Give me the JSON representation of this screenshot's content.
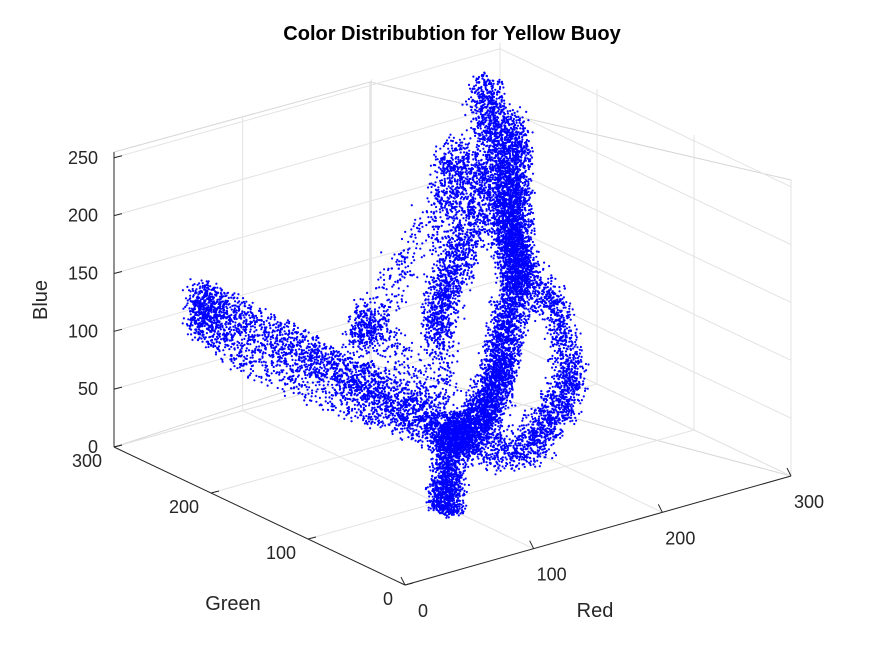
{
  "chart_data": {
    "type": "scatter",
    "title": "Color Distribubtion for Yellow Buoy",
    "xlabel": "Red",
    "ylabel": "Green",
    "zlabel": "Blue",
    "xlim": [
      0,
      300
    ],
    "ylim": [
      0,
      300
    ],
    "zlim": [
      0,
      255
    ],
    "xticks": [
      "0",
      "100",
      "200",
      "300"
    ],
    "yticks": [
      "0",
      "100",
      "200",
      "300"
    ],
    "zticks": [
      "0",
      "50",
      "100",
      "150",
      "200",
      "250"
    ],
    "grid": true,
    "legend": "none",
    "marker_color": "#0000ff",
    "series": [
      {
        "values": [
          [
            255,
            255,
            250
          ],
          [
            255,
            250,
            230
          ],
          [
            255,
            245,
            200
          ],
          [
            255,
            240,
            170
          ],
          [
            255,
            235,
            140
          ],
          [
            255,
            230,
            110
          ],
          [
            255,
            220,
            90
          ],
          [
            250,
            220,
            235
          ],
          [
            245,
            215,
            215
          ],
          [
            240,
            205,
            195
          ],
          [
            235,
            200,
            175
          ],
          [
            230,
            190,
            160
          ],
          [
            225,
            185,
            145
          ],
          [
            220,
            175,
            130
          ],
          [
            210,
            165,
            115
          ],
          [
            200,
            160,
            100
          ],
          [
            190,
            150,
            90
          ],
          [
            180,
            140,
            80
          ],
          [
            170,
            130,
            75
          ],
          [
            160,
            120,
            70
          ],
          [
            150,
            115,
            65
          ],
          [
            140,
            105,
            60
          ],
          [
            130,
            100,
            58
          ],
          [
            120,
            95,
            55
          ],
          [
            110,
            90,
            60
          ],
          [
            100,
            85,
            65
          ],
          [
            90,
            120,
            80
          ],
          [
            80,
            140,
            95
          ],
          [
            70,
            160,
            100
          ],
          [
            60,
            180,
            110
          ],
          [
            50,
            210,
            120
          ],
          [
            40,
            240,
            130
          ],
          [
            35,
            255,
            135
          ],
          [
            30,
            250,
            115
          ],
          [
            50,
            220,
            90
          ],
          [
            80,
            170,
            70
          ],
          [
            100,
            140,
            60
          ],
          [
            120,
            110,
            45
          ],
          [
            140,
            90,
            35
          ],
          [
            160,
            80,
            40
          ],
          [
            180,
            90,
            50
          ],
          [
            200,
            100,
            60
          ],
          [
            220,
            120,
            70
          ],
          [
            240,
            160,
            90
          ],
          [
            255,
            200,
            100
          ],
          [
            230,
            240,
            200
          ],
          [
            200,
            190,
            180
          ],
          [
            170,
            170,
            160
          ],
          [
            150,
            160,
            140
          ],
          [
            130,
            140,
            120
          ],
          [
            110,
            100,
            20
          ],
          [
            100,
            90,
            10
          ],
          [
            95,
            85,
            5
          ],
          [
            115,
            110,
            30
          ],
          [
            125,
            115,
            40
          ],
          [
            90,
            150,
            140
          ],
          [
            85,
            160,
            125
          ],
          [
            180,
            200,
            190
          ],
          [
            210,
            230,
            220
          ],
          [
            140,
            150,
            105
          ]
        ]
      }
    ]
  }
}
